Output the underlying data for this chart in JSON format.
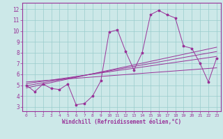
{
  "title": "",
  "xlabel": "Windchill (Refroidissement éolien,°C)",
  "ylabel": "",
  "bg_color": "#cce8e8",
  "line_color": "#993399",
  "grid_color": "#99cccc",
  "xlim": [
    -0.5,
    23.5
  ],
  "ylim": [
    2.6,
    12.6
  ],
  "xticks": [
    0,
    1,
    2,
    3,
    4,
    5,
    6,
    7,
    8,
    9,
    10,
    11,
    12,
    13,
    14,
    15,
    16,
    17,
    18,
    19,
    20,
    21,
    22,
    23
  ],
  "yticks": [
    3,
    4,
    5,
    6,
    7,
    8,
    9,
    10,
    11,
    12
  ],
  "main_x": [
    0,
    1,
    2,
    3,
    4,
    5,
    6,
    7,
    8,
    9,
    10,
    11,
    12,
    13,
    14,
    15,
    16,
    17,
    18,
    19,
    20,
    21,
    22,
    23
  ],
  "main_y": [
    5.0,
    4.4,
    5.1,
    4.7,
    4.6,
    5.1,
    3.2,
    3.3,
    4.0,
    5.4,
    9.9,
    10.1,
    8.1,
    6.4,
    8.0,
    11.5,
    11.9,
    11.5,
    11.2,
    8.6,
    8.4,
    7.0,
    5.3,
    7.5
  ],
  "reg_lines": [
    {
      "x0": 0,
      "y0": 4.75,
      "x1": 23,
      "y1": 8.5
    },
    {
      "x0": 0,
      "y0": 4.95,
      "x1": 23,
      "y1": 8.1
    },
    {
      "x0": 0,
      "y0": 5.15,
      "x1": 23,
      "y1": 7.65
    },
    {
      "x0": 0,
      "y0": 5.3,
      "x1": 23,
      "y1": 6.6
    }
  ]
}
